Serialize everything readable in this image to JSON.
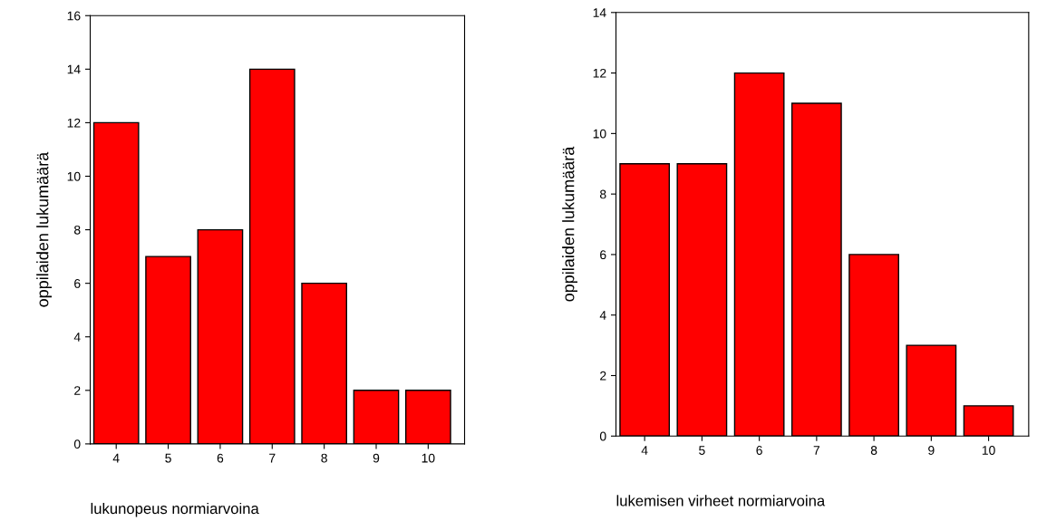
{
  "chart_data": [
    {
      "type": "bar",
      "xlabel": "lukunopeus normiarvoina",
      "ylabel": "oppilaiden lukumäärä",
      "categories": [
        "4",
        "5",
        "6",
        "7",
        "8",
        "9",
        "10"
      ],
      "values": [
        12,
        7,
        8,
        14,
        6,
        2,
        2
      ],
      "color": "#ff0000",
      "ylim": [
        0,
        16
      ],
      "yticks": [
        0,
        2,
        4,
        6,
        8,
        10,
        12,
        14,
        16
      ],
      "grid": false,
      "legend": false
    },
    {
      "type": "bar",
      "xlabel": "lukemisen virheet normiarvoina",
      "ylabel": "oppilaiden lukumäärä",
      "categories": [
        "4",
        "5",
        "6",
        "7",
        "8",
        "9",
        "10"
      ],
      "values": [
        9,
        9,
        12,
        11,
        6,
        3,
        1
      ],
      "color": "#ff0000",
      "ylim": [
        0,
        14
      ],
      "yticks": [
        0,
        2,
        4,
        6,
        8,
        10,
        12,
        14
      ],
      "grid": false,
      "legend": false
    }
  ]
}
